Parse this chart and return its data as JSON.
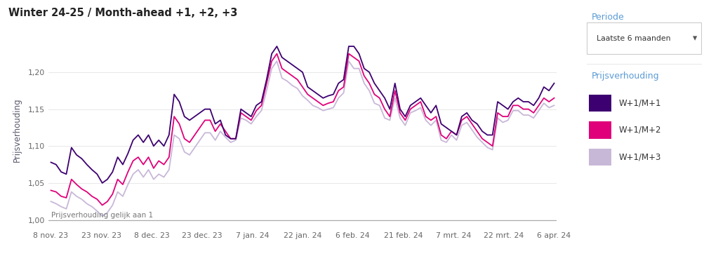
{
  "title": "Winter 24-25 / Month-ahead +1, +2, +3",
  "ylabel": "Prijsverhouding",
  "reference_label": "Prijsverhouding gelijk aan 1",
  "legend_title": "Prijsverhouding",
  "legend_entries": [
    "W+1/M+1",
    "W+1/M+2",
    "W+1/M+3"
  ],
  "line_colors": [
    "#3D0070",
    "#E0007A",
    "#C8B8D8"
  ],
  "legend_colors": [
    "#3D0070",
    "#E0007A",
    "#C8B8D8"
  ],
  "xtick_labels": [
    "8 nov. 23",
    "23 nov. 23",
    "8 dec. 23",
    "23 dec. 23",
    "7 jan. 24",
    "22 jan. 24",
    "6 feb. 24",
    "21 feb. 24",
    "7 mrt. 24",
    "22 mrt. 24",
    "6 apr. 24"
  ],
  "ytick_values": [
    1.0,
    1.05,
    1.1,
    1.15,
    1.2
  ],
  "ylim": [
    0.988,
    1.255
  ],
  "periode_label": "Periode",
  "periode_value": "Laatste 6 maanden",
  "title_color": "#222222",
  "label_color": "#5A5A6E",
  "tick_color": "#666666",
  "grid_color": "#E8E8E8",
  "ref_line_color": "#AAAAAA",
  "sidebar_header_color": "#5B9BD5",
  "series1": [
    1.078,
    1.075,
    1.065,
    1.062,
    1.098,
    1.088,
    1.083,
    1.075,
    1.068,
    1.062,
    1.05,
    1.055,
    1.065,
    1.085,
    1.075,
    1.09,
    1.108,
    1.115,
    1.105,
    1.115,
    1.1,
    1.108,
    1.1,
    1.115,
    1.17,
    1.16,
    1.14,
    1.135,
    1.14,
    1.145,
    1.15,
    1.15,
    1.13,
    1.135,
    1.115,
    1.11,
    1.11,
    1.15,
    1.145,
    1.14,
    1.155,
    1.16,
    1.19,
    1.225,
    1.235,
    1.22,
    1.215,
    1.21,
    1.205,
    1.2,
    1.18,
    1.175,
    1.17,
    1.165,
    1.168,
    1.17,
    1.185,
    1.19,
    1.235,
    1.235,
    1.225,
    1.205,
    1.2,
    1.185,
    1.175,
    1.165,
    1.15,
    1.185,
    1.15,
    1.14,
    1.155,
    1.16,
    1.165,
    1.155,
    1.145,
    1.155,
    1.13,
    1.125,
    1.12,
    1.115,
    1.14,
    1.145,
    1.135,
    1.13,
    1.12,
    1.115,
    1.115,
    1.16,
    1.155,
    1.15,
    1.16,
    1.165,
    1.16,
    1.16,
    1.155,
    1.165,
    1.18,
    1.175,
    1.185
  ],
  "series2": [
    1.04,
    1.038,
    1.032,
    1.03,
    1.055,
    1.048,
    1.042,
    1.038,
    1.032,
    1.028,
    1.02,
    1.025,
    1.035,
    1.055,
    1.048,
    1.065,
    1.08,
    1.085,
    1.075,
    1.085,
    1.07,
    1.08,
    1.075,
    1.085,
    1.14,
    1.13,
    1.11,
    1.105,
    1.115,
    1.125,
    1.135,
    1.135,
    1.12,
    1.13,
    1.12,
    1.11,
    1.11,
    1.145,
    1.14,
    1.135,
    1.148,
    1.155,
    1.185,
    1.215,
    1.225,
    1.205,
    1.2,
    1.195,
    1.19,
    1.18,
    1.17,
    1.165,
    1.16,
    1.155,
    1.158,
    1.16,
    1.175,
    1.18,
    1.225,
    1.22,
    1.215,
    1.195,
    1.185,
    1.17,
    1.165,
    1.15,
    1.14,
    1.175,
    1.145,
    1.135,
    1.15,
    1.155,
    1.16,
    1.14,
    1.135,
    1.14,
    1.115,
    1.11,
    1.12,
    1.115,
    1.135,
    1.14,
    1.13,
    1.12,
    1.11,
    1.105,
    1.1,
    1.145,
    1.14,
    1.14,
    1.155,
    1.155,
    1.15,
    1.15,
    1.145,
    1.155,
    1.165,
    1.16,
    1.165
  ],
  "series3": [
    1.025,
    1.022,
    1.018,
    1.015,
    1.038,
    1.032,
    1.028,
    1.022,
    1.018,
    1.012,
    1.005,
    1.01,
    1.02,
    1.038,
    1.032,
    1.048,
    1.062,
    1.068,
    1.058,
    1.068,
    1.055,
    1.062,
    1.058,
    1.068,
    1.115,
    1.11,
    1.092,
    1.088,
    1.098,
    1.108,
    1.118,
    1.118,
    1.108,
    1.12,
    1.112,
    1.105,
    1.108,
    1.138,
    1.135,
    1.13,
    1.14,
    1.148,
    1.175,
    1.205,
    1.215,
    1.192,
    1.188,
    1.182,
    1.178,
    1.168,
    1.162,
    1.155,
    1.152,
    1.148,
    1.15,
    1.152,
    1.165,
    1.172,
    1.215,
    1.205,
    1.205,
    1.185,
    1.175,
    1.158,
    1.155,
    1.138,
    1.135,
    1.165,
    1.138,
    1.128,
    1.145,
    1.148,
    1.152,
    1.135,
    1.128,
    1.135,
    1.108,
    1.105,
    1.115,
    1.108,
    1.128,
    1.132,
    1.122,
    1.112,
    1.105,
    1.098,
    1.095,
    1.138,
    1.132,
    1.135,
    1.148,
    1.148,
    1.142,
    1.142,
    1.138,
    1.148,
    1.158,
    1.152,
    1.155
  ]
}
